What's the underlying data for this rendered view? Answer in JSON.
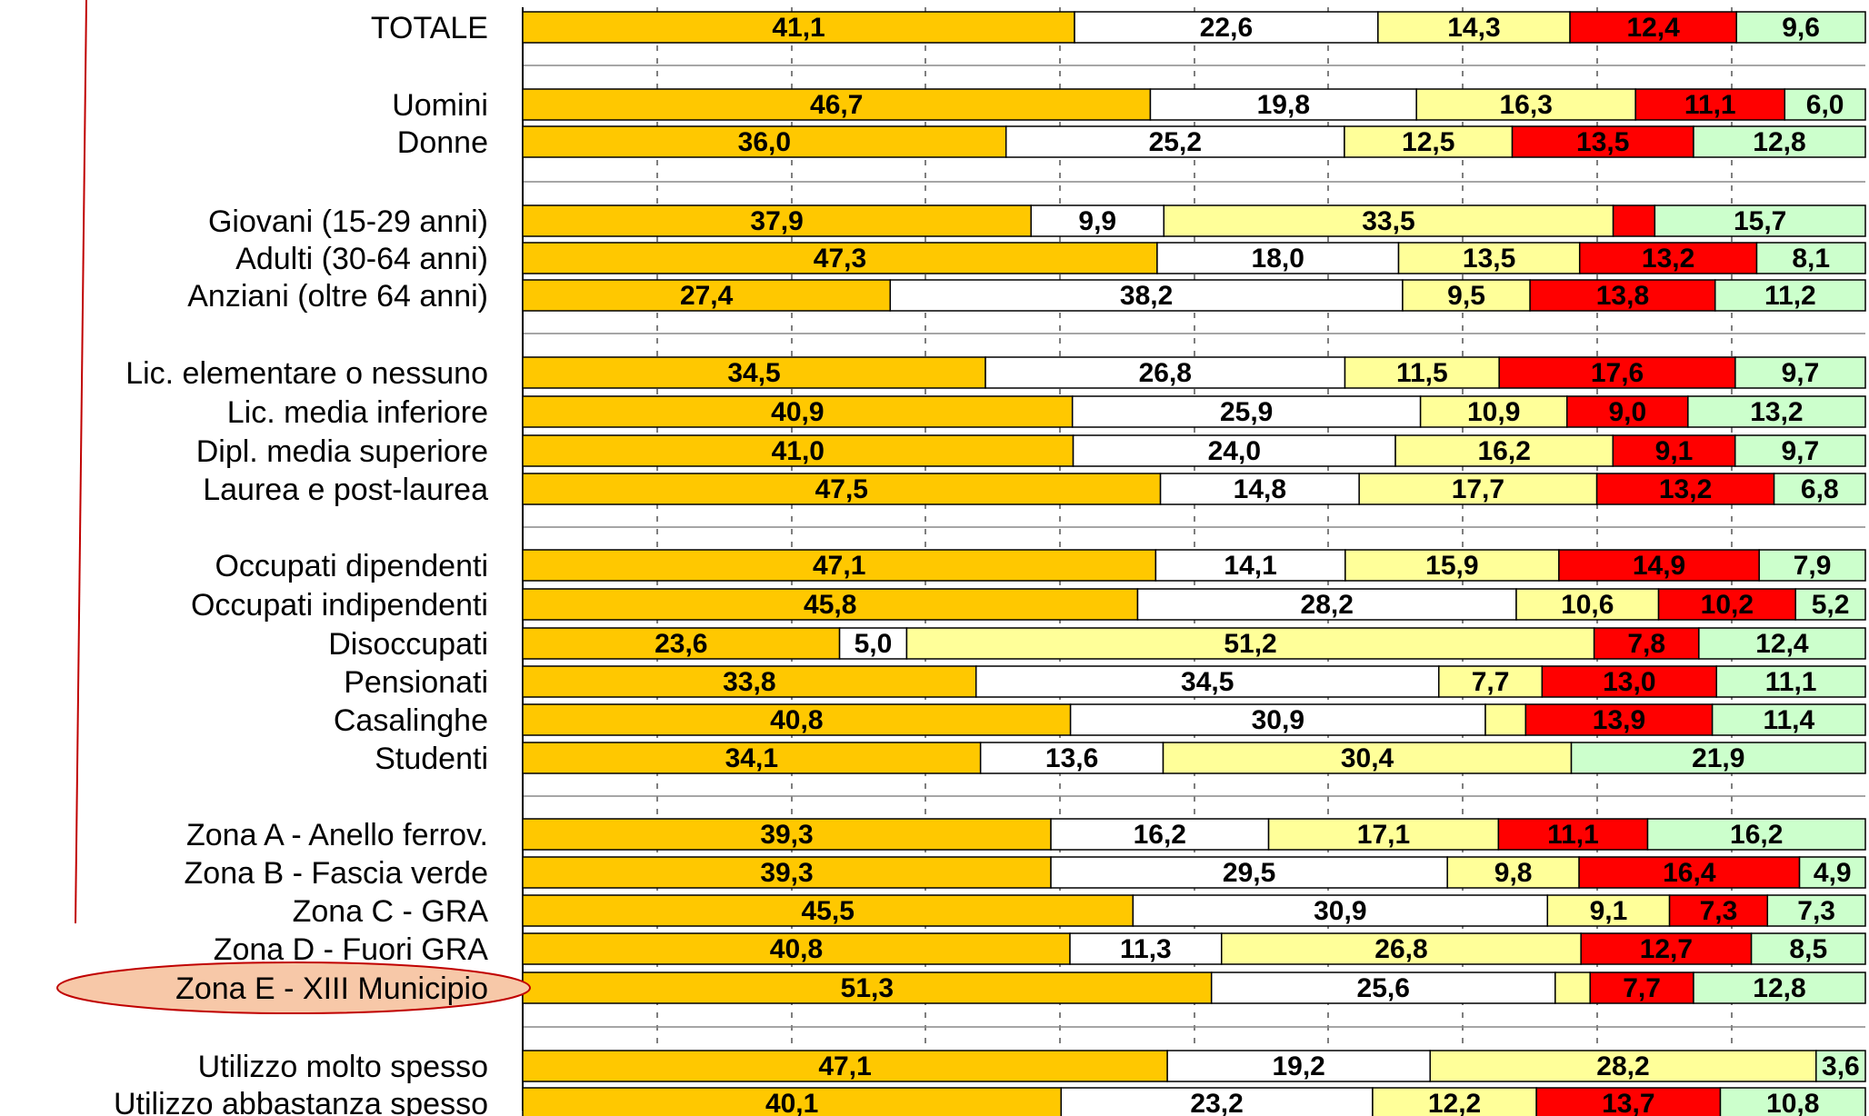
{
  "chart_data": {
    "type": "bar",
    "stacked": true,
    "orientation": "horizontal",
    "series_colors": [
      "#FFC800",
      "#FFFFFF",
      "#FFFF99",
      "#FF0000",
      "#CCFFCC"
    ],
    "highlight_category": "Zona E - XIII Municipio",
    "highlight_color": "#F7C8A8",
    "rows": [
      {
        "label": "TOTALE",
        "values": [
          41.1,
          22.6,
          14.3,
          12.4,
          9.6
        ],
        "labels": [
          "41,1",
          "22,6",
          "14,3",
          "12,4",
          "9,6"
        ]
      },
      {
        "label": "Uomini",
        "values": [
          46.7,
          19.8,
          16.3,
          11.1,
          6.0
        ],
        "labels": [
          "46,7",
          "19,8",
          "16,3",
          "11,1",
          "6,0"
        ]
      },
      {
        "label": "Donne",
        "values": [
          36.0,
          25.2,
          12.5,
          13.5,
          12.8
        ],
        "labels": [
          "36,0",
          "25,2",
          "12,5",
          "13,5",
          "12,8"
        ]
      },
      {
        "label": "Giovani (15-29 anni)",
        "values": [
          37.9,
          9.9,
          33.5,
          3.1,
          15.7
        ],
        "labels": [
          "37,9",
          "9,9",
          "33,5",
          "",
          "15,7"
        ]
      },
      {
        "label": "Adulti (30-64 anni)",
        "values": [
          47.3,
          18.0,
          13.5,
          13.2,
          8.1
        ],
        "labels": [
          "47,3",
          "18,0",
          "13,5",
          "13,2",
          "8,1"
        ]
      },
      {
        "label": "Anziani (oltre 64 anni)",
        "values": [
          27.4,
          38.2,
          9.5,
          13.8,
          11.2
        ],
        "labels": [
          "27,4",
          "38,2",
          "9,5",
          "13,8",
          "11,2"
        ]
      },
      {
        "label": "Lic. elementare o nessuno",
        "values": [
          34.5,
          26.8,
          11.5,
          17.6,
          9.7
        ],
        "labels": [
          "34,5",
          "26,8",
          "11,5",
          "17,6",
          "9,7"
        ]
      },
      {
        "label": "Lic. media inferiore",
        "values": [
          40.9,
          25.9,
          10.9,
          9.0,
          13.2
        ],
        "labels": [
          "40,9",
          "25,9",
          "10,9",
          "9,0",
          "13,2"
        ]
      },
      {
        "label": "Dipl. media superiore",
        "values": [
          41.0,
          24.0,
          16.2,
          9.1,
          9.7
        ],
        "labels": [
          "41,0",
          "24,0",
          "16,2",
          "9,1",
          "9,7"
        ]
      },
      {
        "label": "Laurea e post-laurea",
        "values": [
          47.5,
          14.8,
          17.7,
          13.2,
          6.8
        ],
        "labels": [
          "47,5",
          "14,8",
          "17,7",
          "13,2",
          "6,8"
        ]
      },
      {
        "label": "Occupati dipendenti",
        "values": [
          47.1,
          14.1,
          15.9,
          14.9,
          7.9
        ],
        "labels": [
          "47,1",
          "14,1",
          "15,9",
          "14,9",
          "7,9"
        ]
      },
      {
        "label": "Occupati indipendenti",
        "values": [
          45.8,
          28.2,
          10.6,
          10.2,
          5.2
        ],
        "labels": [
          "45,8",
          "28,2",
          "10,6",
          "10,2",
          "5,2"
        ]
      },
      {
        "label": "Disoccupati",
        "values": [
          23.6,
          5.0,
          51.2,
          7.8,
          12.4
        ],
        "labels": [
          "23,6",
          "5,0",
          "51,2",
          "7,8",
          "12,4"
        ]
      },
      {
        "label": "Pensionati",
        "values": [
          33.8,
          34.5,
          7.7,
          13.0,
          11.1
        ],
        "labels": [
          "33,8",
          "34,5",
          "7,7",
          "13,0",
          "11,1"
        ]
      },
      {
        "label": "Casalinghe",
        "values": [
          40.8,
          30.9,
          3.0,
          13.9,
          11.4
        ],
        "labels": [
          "40,8",
          "30,9",
          "",
          "13,9",
          "11,4"
        ]
      },
      {
        "label": "Studenti",
        "values": [
          34.1,
          13.6,
          30.4,
          0,
          21.9
        ],
        "labels": [
          "34,1",
          "13,6",
          "30,4",
          "",
          "21,9"
        ]
      },
      {
        "label": "Zona A - Anello ferrov.",
        "values": [
          39.3,
          16.2,
          17.1,
          11.1,
          16.2
        ],
        "labels": [
          "39,3",
          "16,2",
          "17,1",
          "11,1",
          "16,2"
        ]
      },
      {
        "label": "Zona B - Fascia verde",
        "values": [
          39.3,
          29.5,
          9.8,
          16.4,
          4.9
        ],
        "labels": [
          "39,3",
          "29,5",
          "9,8",
          "16,4",
          "4,9"
        ]
      },
      {
        "label": "Zona C - GRA",
        "values": [
          45.5,
          30.9,
          9.1,
          7.3,
          7.3
        ],
        "labels": [
          "45,5",
          "30,9",
          "9,1",
          "7,3",
          "7,3"
        ]
      },
      {
        "label": "Zona D - Fuori GRA",
        "values": [
          40.8,
          11.3,
          26.8,
          12.7,
          8.5
        ],
        "labels": [
          "40,8",
          "11,3",
          "26,8",
          "12,7",
          "8,5"
        ]
      },
      {
        "label": "Zona E - XIII Municipio",
        "values": [
          51.3,
          25.6,
          2.6,
          7.7,
          12.8
        ],
        "labels": [
          "51,3",
          "25,6",
          "",
          "7,7",
          "12,8"
        ]
      },
      {
        "label": "Utilizzo molto spesso",
        "values": [
          47.1,
          19.2,
          28.2,
          0,
          3.6
        ],
        "labels": [
          "47,1",
          "19,2",
          "28,2",
          "",
          "3,6"
        ]
      },
      {
        "label": "Utilizzo abbastanza spesso",
        "values": [
          40.1,
          23.2,
          12.2,
          13.7,
          10.8
        ],
        "labels": [
          "40,1",
          "23,2",
          "12,2",
          "13,7",
          "10,8"
        ]
      }
    ],
    "xlim": [
      0,
      100
    ],
    "grid": "vertical-dashed"
  }
}
